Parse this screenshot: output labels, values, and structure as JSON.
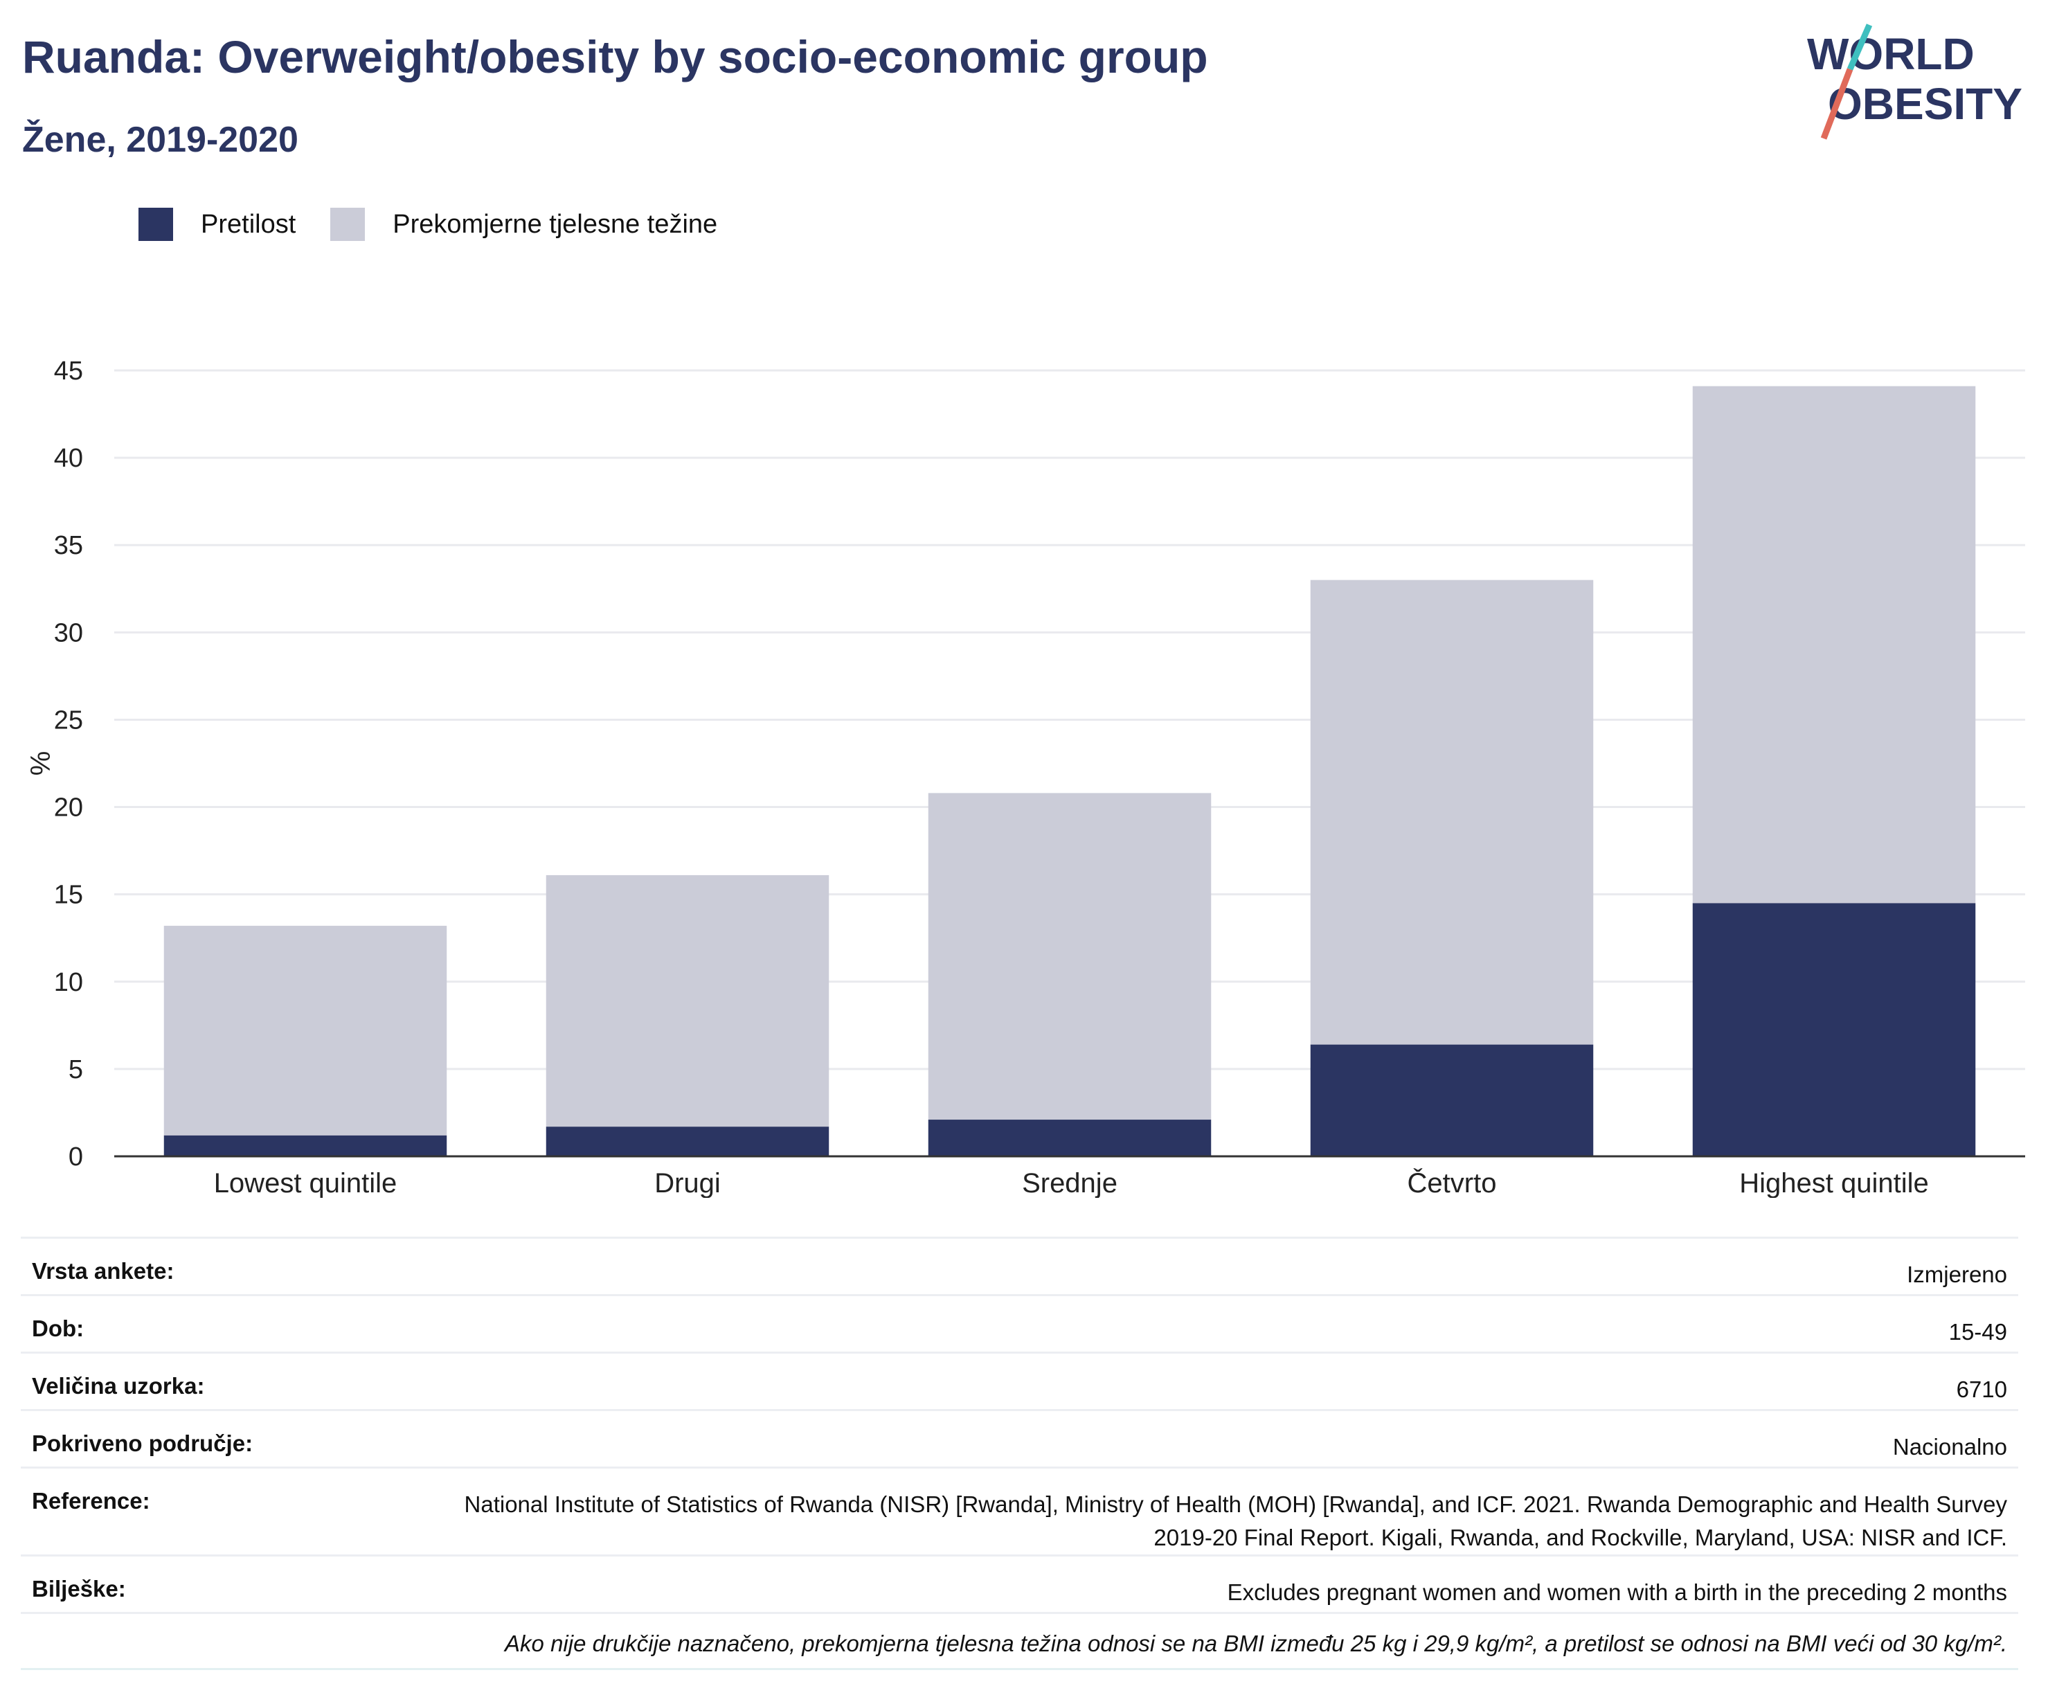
{
  "title": "Ruanda: Overweight/obesity by socio-economic group",
  "subtitle": "Žene, 2019-2020",
  "logo": {
    "line1": "WORLD",
    "line2": "OBESITY"
  },
  "colors": {
    "obesity": "#2b3562",
    "overweight": "#cbccd8",
    "title": "#2b3562",
    "axis": "#333333",
    "grid": "#e9eaee"
  },
  "chart_data": {
    "type": "bar",
    "stacked": true,
    "categories": [
      "Lowest quintile",
      "Drugi",
      "Srednje",
      "Četvrto",
      "Highest quintile"
    ],
    "series": [
      {
        "name": "Pretilost",
        "values": [
          1.2,
          1.7,
          2.1,
          6.4,
          14.5
        ]
      },
      {
        "name": "Prekomjerne tjelesne težine",
        "values": [
          12.0,
          14.4,
          18.7,
          26.6,
          29.6
        ]
      }
    ],
    "ylabel": "%",
    "ylim": [
      0,
      45
    ],
    "yticks": [
      0,
      5,
      10,
      15,
      20,
      25,
      30,
      35,
      40,
      45
    ],
    "grid": true,
    "legend": "top-left"
  },
  "meta": [
    {
      "label": "Vrsta ankete:",
      "value": "Izmjereno"
    },
    {
      "label": "Dob:",
      "value": "15-49"
    },
    {
      "label": "Veličina uzorka:",
      "value": "6710"
    },
    {
      "label": "Pokriveno područje:",
      "value": "Nacionalno"
    },
    {
      "label": "Reference:",
      "value": "National Institute of Statistics of Rwanda (NISR) [Rwanda], Ministry of Health (MOH) [Rwanda], and ICF. 2021. Rwanda Demographic and Health Survey 2019-20 Final Report. Kigali, Rwanda, and Rockville, Maryland, USA: NISR and ICF."
    },
    {
      "label": "Bilješke:",
      "value": "Excludes pregnant women and women with a birth in the preceding 2 months"
    }
  ],
  "footnote": "Ako nije drukčije naznačeno, prekomjerna tjelesna težina odnosi se na BMI između 25 kg i 29,9 kg/m², a pretilost se odnosi na BMI veći od 30 kg/m²."
}
